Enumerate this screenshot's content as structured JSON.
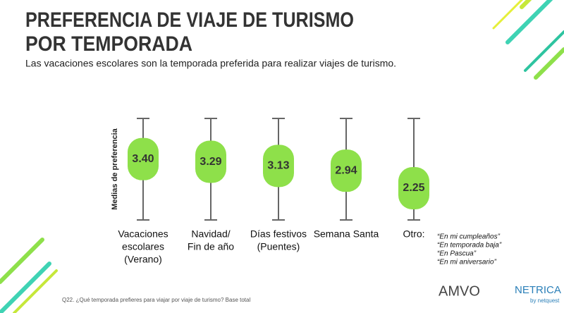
{
  "chart_data": {
    "type": "pill-range",
    "title": [
      "PREFERENCIA DE VIAJE DE TURISMO",
      "POR TEMPORADA"
    ],
    "subtitle": "Las vacaciones escolares son la temporada preferida para realizar viajes de turismo.",
    "y_label": "Medias de preferencia",
    "categories": [
      [
        "Vacaciones",
        "escolares",
        "(Verano)"
      ],
      [
        "Navidad/",
        "Fin de año"
      ],
      [
        "Días festivos",
        "(Puentes)"
      ],
      [
        "Semana Santa"
      ],
      [
        "Otro:"
      ]
    ],
    "values": [
      3.4,
      3.29,
      3.13,
      2.94,
      2.25
    ],
    "value_labels": [
      "3.40",
      "3.29",
      "3.13",
      "2.94",
      "2.25"
    ],
    "color": "#8ee04a",
    "ylim": [
      1,
      5
    ],
    "annotation": [
      "“En mi cumpleaños”",
      "“En temporada baja”",
      "“En Pascua”",
      "“En mi aniversario”"
    ],
    "footnote": "Q22. ¿Qué temporada prefieres para viajar por viaje de turismo? Base total",
    "logos": [
      "AMVO",
      "NETRICA",
      "by netquest"
    ]
  }
}
